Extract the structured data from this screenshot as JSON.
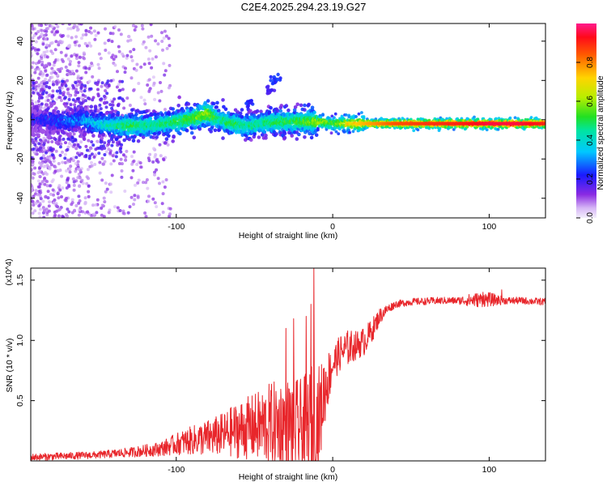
{
  "title": "C2E4.2025.294.23.19.G27",
  "colors": {
    "snr_line": "#e8262b",
    "frame": "#000000",
    "faint_noise": "#c9a6f2"
  },
  "chart_data": [
    {
      "type": "heatmap",
      "title": "C2E4.2025.294.23.19.G27",
      "xlabel": "Height of straight line (km)",
      "ylabel": "Frequency (Hz)",
      "xlim": [
        -193,
        136
      ],
      "ylim": [
        -50,
        49
      ],
      "xticks": [
        -100,
        0,
        100
      ],
      "yticks": [
        -40,
        -20,
        0,
        20,
        40
      ],
      "grid": false,
      "colorbar": {
        "label": "Normalized spectral amplitude",
        "range": [
          0,
          1
        ],
        "ticks": [
          0.0,
          0.2,
          0.4,
          0.6,
          0.8
        ],
        "tick_labels": [
          "0.0",
          "0.2",
          "0.4",
          "0.6",
          "0.8"
        ],
        "colormap": "rainbow (lavender - purple - blue - cyan - green - yellow - orange - red - pink)"
      },
      "ridge": {
        "description": "dominant frequency track vs height",
        "points": [
          [
            -190,
            0,
            0.2
          ],
          [
            -175,
            -1,
            0.25
          ],
          [
            -160,
            0,
            0.3
          ],
          [
            -145,
            -3,
            0.4
          ],
          [
            -130,
            -3,
            0.5
          ],
          [
            -115,
            -3,
            0.45
          ],
          [
            -100,
            -1,
            0.5
          ],
          [
            -88,
            1,
            0.55
          ],
          [
            -80,
            3,
            0.6
          ],
          [
            -72,
            0,
            0.45
          ],
          [
            -65,
            -2,
            0.5
          ],
          [
            -55,
            -3,
            0.45
          ],
          [
            -45,
            -2,
            0.45
          ],
          [
            -35,
            -1,
            0.5
          ],
          [
            -25,
            -1,
            0.5
          ],
          [
            -15,
            -1,
            0.55
          ],
          [
            -8,
            -1,
            0.6
          ],
          [
            0,
            -2,
            0.55
          ],
          [
            10,
            -2,
            0.7
          ],
          [
            20,
            -2,
            0.75
          ],
          [
            40,
            -2,
            0.85
          ],
          [
            60,
            -2,
            0.88
          ],
          [
            80,
            -2,
            0.9
          ],
          [
            100,
            -2,
            0.95
          ],
          [
            120,
            -2,
            0.95
          ],
          [
            136,
            -2,
            0.9
          ]
        ]
      },
      "secondary_features": [
        {
          "x": -53,
          "y": 9,
          "amplitude": 0.2
        },
        {
          "x": -40,
          "y": 15,
          "amplitude": 0.15
        },
        {
          "x": -37,
          "y": 20,
          "amplitude": 0.2
        }
      ]
    },
    {
      "type": "line",
      "xlabel": "Height of straight line (km)",
      "ylabel": "SNR (10 * v/v)",
      "y_multiplier": "(x10^4)",
      "xlim": [
        -193,
        136
      ],
      "ylim": [
        0,
        16000
      ],
      "xticks": [
        -100,
        0,
        100
      ],
      "yticks": [
        5000,
        10000,
        15000
      ],
      "ytick_labels": [
        "0.5",
        "1.0",
        "1.5"
      ],
      "grid": false,
      "series": [
        {
          "name": "SNR",
          "envelope": {
            "x": [
              -193,
              -170,
              -150,
              -130,
              -110,
              -100,
              -90,
              -80,
              -70,
              -60,
              -50,
              -40,
              -30,
              -20,
              -15,
              -12,
              -10,
              -8,
              -5,
              0,
              5,
              10,
              15,
              20,
              25,
              30,
              35,
              40,
              45,
              50,
              60,
              70,
              80,
              90,
              100,
              110,
              120,
              136
            ],
            "mean": [
              300,
              400,
              500,
              700,
              1000,
              1400,
              1700,
              1900,
              2200,
              2600,
              2800,
              3000,
              3000,
              2800,
              2600,
              2500,
              3000,
              4000,
              6000,
              8000,
              9000,
              9400,
              9600,
              9900,
              10800,
              12000,
              12600,
              13000,
              13100,
              13200,
              13250,
              13300,
              13300,
              13350,
              13400,
              13300,
              13300,
              13200
            ],
            "spread": [
              300,
              300,
              300,
              400,
              600,
              900,
              1200,
              1500,
              1800,
              2400,
              2800,
              3500,
              4000,
              4000,
              5000,
              6000,
              5000,
              4000,
              3000,
              1500,
              1500,
              1500,
              1200,
              1200,
              1000,
              700,
              400,
              300,
              300,
              300,
              300,
              300,
              300,
              600,
              600,
              300,
              300,
              300
            ]
          },
          "peaks": [
            [
              -12,
              16000
            ],
            [
              -14,
              13000
            ],
            [
              -17,
              12000
            ],
            [
              -25,
              11800
            ],
            [
              -30,
              11000
            ],
            [
              96,
              14000
            ],
            [
              108,
              14200
            ]
          ]
        }
      ]
    }
  ]
}
